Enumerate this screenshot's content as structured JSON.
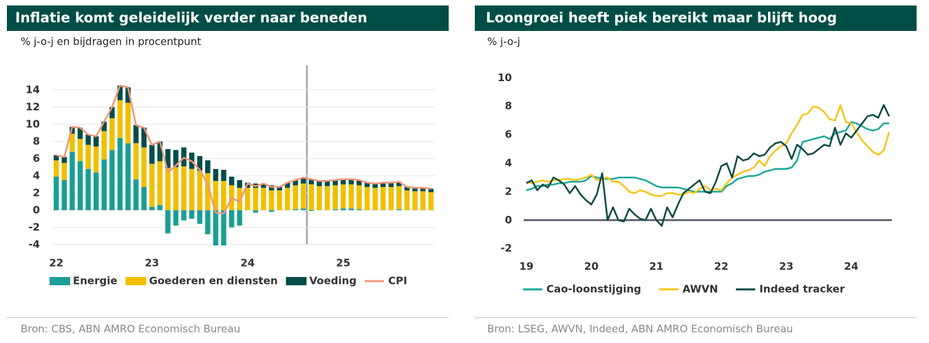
{
  "chart_data": [
    {
      "type": "bar",
      "stacked": true,
      "title": "Inflatie komt geleidelijk verder naar beneden",
      "subtitle": "% j-o-j en bijdragen in procentpunt",
      "source": "Bron: CBS, ABN AMRO Economisch Bureau",
      "categories": [
        "22",
        null,
        null,
        null,
        null,
        null,
        null,
        null,
        null,
        null,
        null,
        null,
        "23",
        null,
        null,
        null,
        null,
        null,
        null,
        null,
        null,
        null,
        null,
        null,
        "24",
        null,
        null,
        null,
        null,
        null,
        null,
        null,
        null,
        null,
        null,
        null,
        "25",
        null,
        null,
        null,
        null,
        null,
        null,
        null,
        null,
        null,
        null,
        null
      ],
      "ylim": [
        -4.5,
        15.5
      ],
      "yticks": [
        -4,
        -2,
        0,
        2,
        4,
        6,
        8,
        10,
        12,
        14
      ],
      "grid": true,
      "legend": "bottom",
      "series": [
        {
          "name": "Energie",
          "color": "#1a9e96",
          "values": [
            3.9,
            3.5,
            6.8,
            5.7,
            4.8,
            4.4,
            5.9,
            7.0,
            8.4,
            7.8,
            3.6,
            2.7,
            0.4,
            0.6,
            -2.7,
            -1.8,
            -1.2,
            -1.0,
            -1.6,
            -2.8,
            -4.1,
            -4.1,
            -2.0,
            -1.8,
            0.0,
            -0.3,
            0.0,
            -0.2,
            0.0,
            0.0,
            0.1,
            0.2,
            -0.1,
            0.0,
            0.0,
            0.1,
            0.2,
            0.2,
            0.1,
            0.0,
            0.0,
            0.0,
            0.0,
            0.1,
            0.0,
            0.0,
            0.0,
            0.0
          ]
        },
        {
          "name": "Goederen en diensten",
          "color": "#f0c000",
          "values": [
            1.9,
            2.0,
            2.1,
            2.6,
            2.8,
            3.0,
            3.3,
            3.7,
            4.4,
            4.7,
            4.2,
            4.6,
            5.0,
            5.1,
            4.9,
            5.0,
            5.1,
            4.8,
            4.6,
            4.3,
            3.4,
            3.4,
            2.9,
            2.6,
            2.6,
            2.6,
            2.6,
            2.3,
            2.3,
            2.6,
            2.8,
            2.9,
            3.0,
            2.8,
            2.8,
            2.8,
            2.8,
            2.8,
            2.8,
            2.7,
            2.6,
            2.7,
            2.7,
            2.7,
            2.3,
            2.2,
            2.2,
            2.1
          ]
        },
        {
          "name": "Voeding",
          "color": "#004d47",
          "values": [
            0.6,
            0.7,
            0.8,
            1.3,
            1.2,
            1.2,
            1.1,
            1.3,
            1.7,
            1.8,
            2.1,
            2.3,
            2.2,
            2.3,
            2.2,
            2.0,
            2.2,
            1.9,
            1.7,
            1.5,
            1.4,
            1.3,
            1.0,
            0.9,
            0.6,
            0.5,
            0.5,
            0.6,
            0.5,
            0.6,
            0.6,
            0.6,
            0.6,
            0.6,
            0.6,
            0.6,
            0.6,
            0.6,
            0.6,
            0.5,
            0.5,
            0.5,
            0.5,
            0.5,
            0.4,
            0.4,
            0.4,
            0.4
          ]
        },
        {
          "name": "CPI",
          "type": "line",
          "color": "#f0957a",
          "values": [
            6.4,
            6.2,
            9.7,
            9.6,
            8.8,
            8.6,
            10.3,
            12.0,
            14.5,
            14.3,
            9.9,
            9.6,
            7.6,
            8.0,
            4.4,
            5.2,
            6.1,
            5.7,
            4.7,
            3.0,
            -0.3,
            -0.4,
            1.4,
            1.0,
            3.1,
            2.8,
            3.1,
            2.7,
            2.7,
            3.2,
            3.5,
            3.8,
            3.6,
            3.4,
            3.4,
            3.5,
            3.6,
            3.6,
            3.5,
            3.2,
            3.1,
            3.2,
            3.2,
            3.3,
            2.7,
            2.6,
            2.6,
            2.5
          ]
        }
      ]
    },
    {
      "type": "line",
      "title": "Loongroei heeft piek bereikt maar blijft hoog",
      "subtitle": "% j-o-j",
      "source": "Bron: LSEG, AWVN, Indeed, ABN AMRO Economisch Bureau",
      "categories": [
        "19",
        null,
        null,
        null,
        null,
        null,
        null,
        null,
        null,
        null,
        null,
        null,
        "20",
        null,
        null,
        null,
        null,
        null,
        null,
        null,
        null,
        null,
        null,
        null,
        "21",
        null,
        null,
        null,
        null,
        null,
        null,
        null,
        null,
        null,
        null,
        null,
        "22",
        null,
        null,
        null,
        null,
        null,
        null,
        null,
        null,
        null,
        null,
        null,
        "23",
        null,
        null,
        null,
        null,
        null,
        null,
        null,
        null,
        null,
        null,
        null,
        "24",
        null,
        null,
        null,
        null,
        null,
        null,
        null
      ],
      "ylim": [
        -2.5,
        10.5
      ],
      "yticks": [
        -2,
        0,
        2,
        4,
        6,
        8,
        10
      ],
      "grid": false,
      "legend": "bottom",
      "series": [
        {
          "name": "Cao-loonstijging",
          "color": "#1aa898",
          "values": [
            2.1,
            2.2,
            2.4,
            2.4,
            2.5,
            2.5,
            2.6,
            2.6,
            2.7,
            2.7,
            2.7,
            2.8,
            3.1,
            3.0,
            2.9,
            2.9,
            2.9,
            3.0,
            3.0,
            3.0,
            3.0,
            2.9,
            2.8,
            2.6,
            2.4,
            2.3,
            2.3,
            2.3,
            2.3,
            2.2,
            2.1,
            2.0,
            2.0,
            2.0,
            2.0,
            2.0,
            2.0,
            2.4,
            2.6,
            2.9,
            3.0,
            3.1,
            3.1,
            3.2,
            3.4,
            3.5,
            3.6,
            3.6,
            3.6,
            3.7,
            4.2,
            5.5,
            5.6,
            5.7,
            5.8,
            5.9,
            5.7,
            6.1,
            6.2,
            6.3,
            6.9,
            6.8,
            6.6,
            6.4,
            6.3,
            6.4,
            6.8,
            6.8
          ]
        },
        {
          "name": "AWVN",
          "color": "#f5c518",
          "values": [
            2.7,
            2.6,
            2.7,
            2.8,
            2.7,
            2.8,
            2.8,
            2.9,
            2.9,
            2.8,
            2.9,
            3.0,
            3.2,
            2.8,
            2.9,
            3.0,
            2.7,
            2.7,
            2.4,
            2.0,
            1.9,
            2.1,
            2.0,
            1.8,
            1.7,
            1.7,
            1.9,
            1.9,
            1.8,
            1.8,
            2.0,
            1.9,
            2.2,
            2.4,
            2.1,
            2.2,
            2.1,
            2.6,
            3.0,
            3.2,
            3.4,
            3.5,
            3.7,
            4.2,
            3.8,
            4.5,
            4.9,
            5.2,
            5.4,
            6.1,
            6.7,
            7.4,
            7.5,
            8.0,
            7.9,
            7.6,
            7.1,
            7.0,
            8.1,
            6.9,
            6.8,
            6.2,
            5.6,
            5.2,
            4.8,
            4.6,
            4.9,
            6.2
          ]
        },
        {
          "name": "Indeed tracker",
          "color": "#0c4a42",
          "values": [
            2.6,
            2.8,
            2.1,
            2.5,
            2.3,
            3.0,
            2.8,
            2.5,
            1.9,
            2.4,
            1.8,
            1.4,
            1.1,
            1.8,
            3.3,
            0.0,
            0.9,
            0.0,
            -0.1,
            0.8,
            0.4,
            0.1,
            0.0,
            0.8,
            0.0,
            -0.4,
            0.9,
            0.2,
            1.1,
            1.9,
            2.2,
            2.5,
            2.8,
            2.0,
            1.9,
            2.7,
            3.8,
            4.0,
            3.0,
            4.5,
            4.2,
            4.3,
            4.7,
            4.5,
            4.6,
            5.1,
            5.4,
            5.5,
            5.2,
            4.3,
            5.3,
            5.0,
            4.6,
            4.7,
            5.0,
            5.3,
            5.2,
            6.5,
            5.3,
            6.1,
            5.8,
            6.3,
            6.8,
            7.3,
            7.4,
            7.2,
            8.1,
            7.3
          ]
        }
      ]
    }
  ]
}
